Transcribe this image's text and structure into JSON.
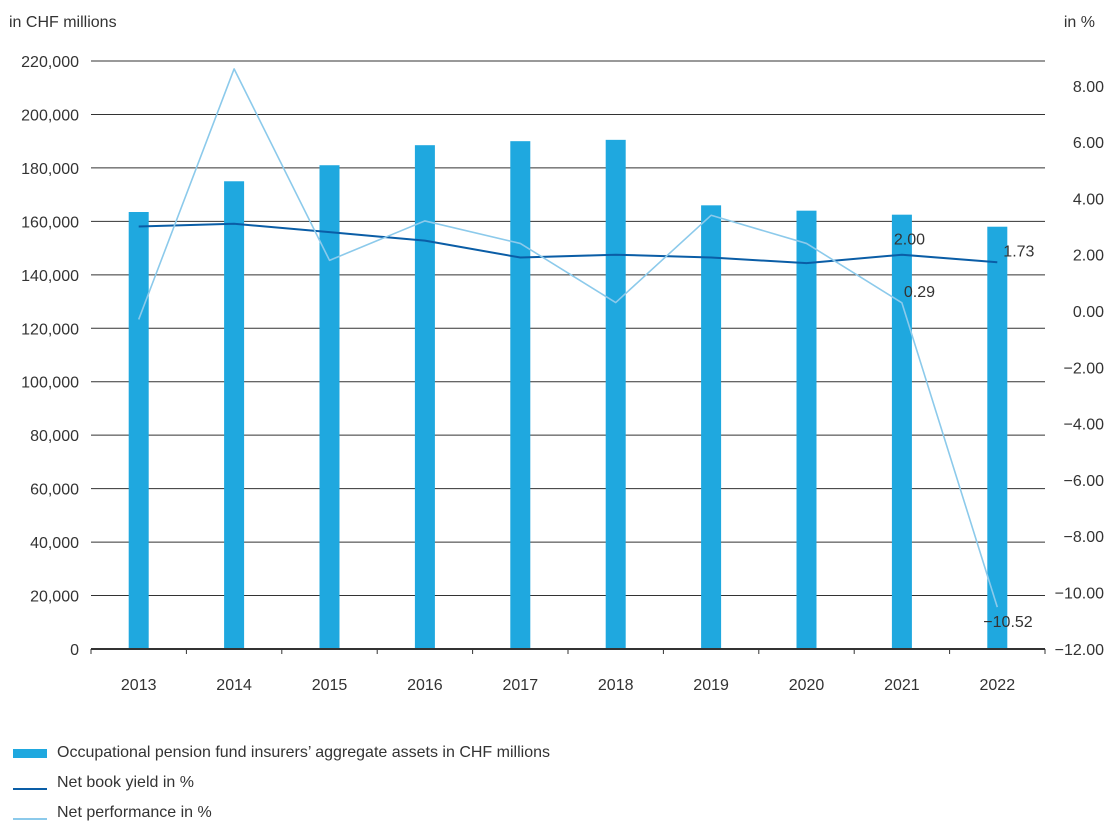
{
  "chart_data": {
    "type": "bar",
    "left_unit": "in CHF millions",
    "right_unit": "in %",
    "categories": [
      "2013",
      "2014",
      "2015",
      "2016",
      "2017",
      "2018",
      "2019",
      "2020",
      "2021",
      "2022"
    ],
    "left_axis": {
      "min": 0,
      "max": 220000,
      "ticks": [
        0,
        20000,
        40000,
        60000,
        80000,
        100000,
        120000,
        140000,
        160000,
        180000,
        200000,
        220000
      ],
      "tick_labels": [
        "0",
        "20,000",
        "40,000",
        "60,000",
        "80,000",
        "100,000",
        "120,000",
        "140,000",
        "160,000",
        "180,000",
        "200,000",
        "220,000"
      ]
    },
    "right_axis": {
      "min": -12,
      "max": 9,
      "ticks": [
        -12,
        -10,
        -8,
        -6,
        -4,
        -2,
        0,
        2,
        4,
        6,
        8
      ],
      "tick_labels": [
        "−12.00",
        "−10.00",
        "−8.00",
        "−6.00",
        "−4.00",
        "−2.00",
        "0.00",
        "2.00",
        "4.00",
        "6.00",
        "8.00"
      ]
    },
    "series": [
      {
        "name": "Occupational pension fund insurers’ aggregate assets in CHF millions",
        "kind": "bar",
        "axis": "left",
        "color": "#1fa8df",
        "values": [
          163500,
          175000,
          181000,
          188500,
          190000,
          190500,
          166000,
          164000,
          162500,
          158000
        ]
      },
      {
        "name": "Net book yield in %",
        "kind": "line",
        "axis": "right",
        "color": "#0a5da6",
        "values": [
          3.0,
          3.1,
          2.8,
          2.5,
          1.9,
          2.0,
          1.9,
          1.7,
          2.0,
          1.73
        ]
      },
      {
        "name": "Net performance in %",
        "kind": "line",
        "axis": "right",
        "color": "#8ccaeb",
        "values": [
          -0.3,
          8.6,
          1.8,
          3.2,
          2.4,
          0.3,
          3.4,
          2.4,
          0.29,
          -10.52
        ]
      }
    ],
    "annotations": [
      {
        "text": "2.00",
        "category": "2021",
        "series": "Net book yield in %"
      },
      {
        "text": "1.73",
        "category": "2022",
        "series": "Net book yield in %"
      },
      {
        "text": "0.29",
        "category": "2021",
        "series": "Net performance in %"
      },
      {
        "text": "−10.52",
        "category": "2022",
        "series": "Net performance in %"
      }
    ],
    "grid": true,
    "legend": "bottom-left"
  }
}
